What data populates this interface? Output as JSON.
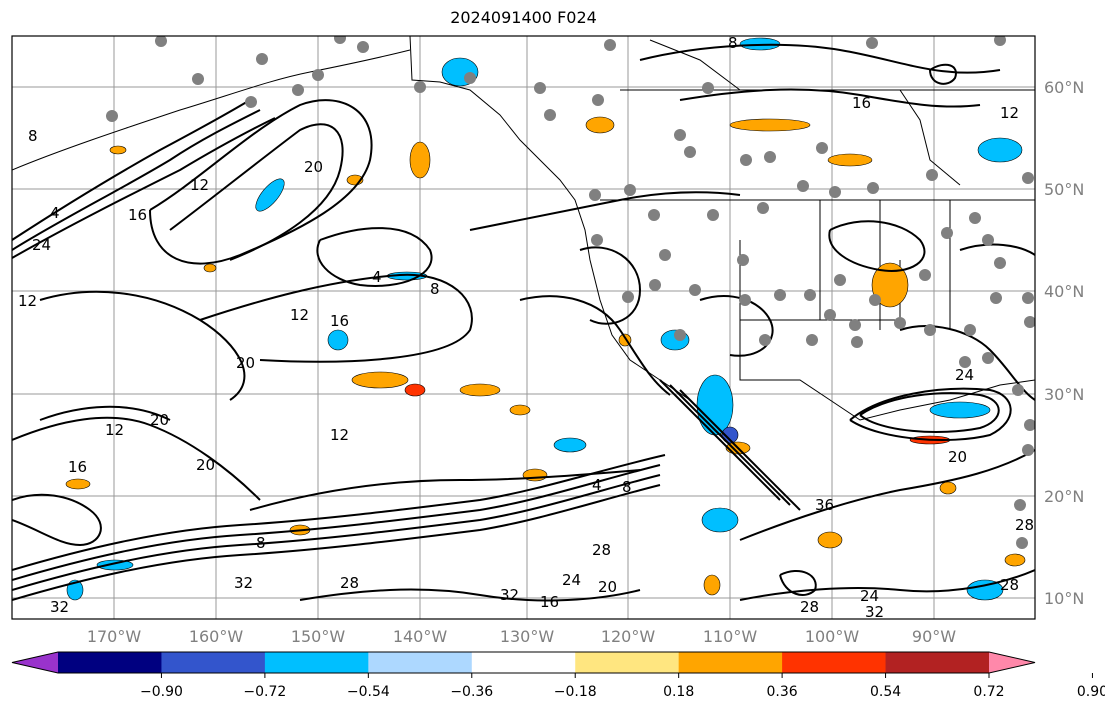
{
  "title": "2024091400 F024",
  "map": {
    "latitude_labels": [
      "60°N",
      "50°N",
      "40°N",
      "30°N",
      "20°N",
      "10°N"
    ],
    "longitude_labels": [
      "170°W",
      "160°W",
      "150°W",
      "140°W",
      "130°W",
      "120°W",
      "110°W",
      "100°W",
      "90°W"
    ],
    "contour_labels": [
      "8",
      "4",
      "24",
      "16",
      "12",
      "20",
      "4",
      "8",
      "12",
      "16",
      "20",
      "12",
      "16",
      "12",
      "20",
      "20",
      "12",
      "8",
      "4",
      "8",
      "32",
      "28",
      "32",
      "24",
      "28",
      "20",
      "16",
      "32",
      "28",
      "24",
      "32",
      "28",
      "16",
      "12",
      "8",
      "24",
      "28",
      "20",
      "36"
    ],
    "station_marker_color": "#808080",
    "contour_color": "#000000"
  },
  "colorbar": {
    "ticks": [
      "−0.90",
      "−0.72",
      "−0.54",
      "−0.36",
      "−0.18",
      "0.18",
      "0.36",
      "0.54",
      "0.72",
      "0.90"
    ],
    "colors": [
      "#9933cc",
      "#000080",
      "#3355cc",
      "#00bfff",
      "#add8ff",
      "#ffffff",
      "#ffe680",
      "#ffa500",
      "#ff3300",
      "#b22222",
      "#ff88aa"
    ],
    "extend": "both"
  }
}
